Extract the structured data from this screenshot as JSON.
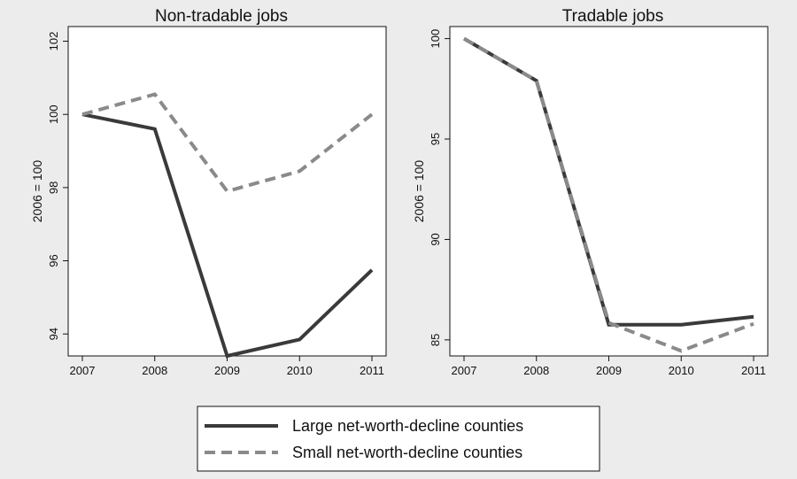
{
  "chart_data": [
    {
      "type": "line",
      "title": "Non-tradable jobs",
      "xlabel": "",
      "ylabel": "2006 = 100",
      "categories": [
        "2007",
        "2008",
        "2009",
        "2010",
        "2011"
      ],
      "xlim": [
        2007,
        2011
      ],
      "ylim": [
        93.4,
        102.4
      ],
      "yticks": [
        "94",
        "96",
        "98",
        "100",
        "102"
      ],
      "grid": false,
      "series": [
        {
          "name": "Large net-worth-decline counties",
          "values": [
            100,
            99.6,
            93.4,
            93.85,
            95.75
          ],
          "color": "#3a3a3a",
          "style": "solid"
        },
        {
          "name": "Small net-worth-decline counties",
          "values": [
            100,
            100.55,
            97.9,
            98.45,
            100.0
          ],
          "color": "#8a8a8a",
          "style": "dashed"
        }
      ]
    },
    {
      "type": "line",
      "title": "Tradable jobs",
      "xlabel": "",
      "ylabel": "2006 = 100",
      "categories": [
        "2007",
        "2008",
        "2009",
        "2010",
        "2011"
      ],
      "xlim": [
        2007,
        2011
      ],
      "ylim": [
        84.2,
        100.6
      ],
      "yticks": [
        "85",
        "90",
        "95",
        "100"
      ],
      "grid": false,
      "series": [
        {
          "name": "Large net-worth-decline counties",
          "values": [
            100,
            97.9,
            85.75,
            85.75,
            86.15
          ],
          "color": "#3a3a3a",
          "style": "solid"
        },
        {
          "name": "Small net-worth-decline counties",
          "values": [
            100,
            97.9,
            85.85,
            84.45,
            85.8
          ],
          "color": "#8a8a8a",
          "style": "dashed"
        }
      ]
    }
  ],
  "legend": {
    "placement": "bottom",
    "items": [
      {
        "label": "Large net-worth-decline counties",
        "color": "#3a3a3a",
        "style": "solid"
      },
      {
        "label": "Small net-worth-decline counties",
        "color": "#8a8a8a",
        "style": "dashed"
      }
    ]
  }
}
